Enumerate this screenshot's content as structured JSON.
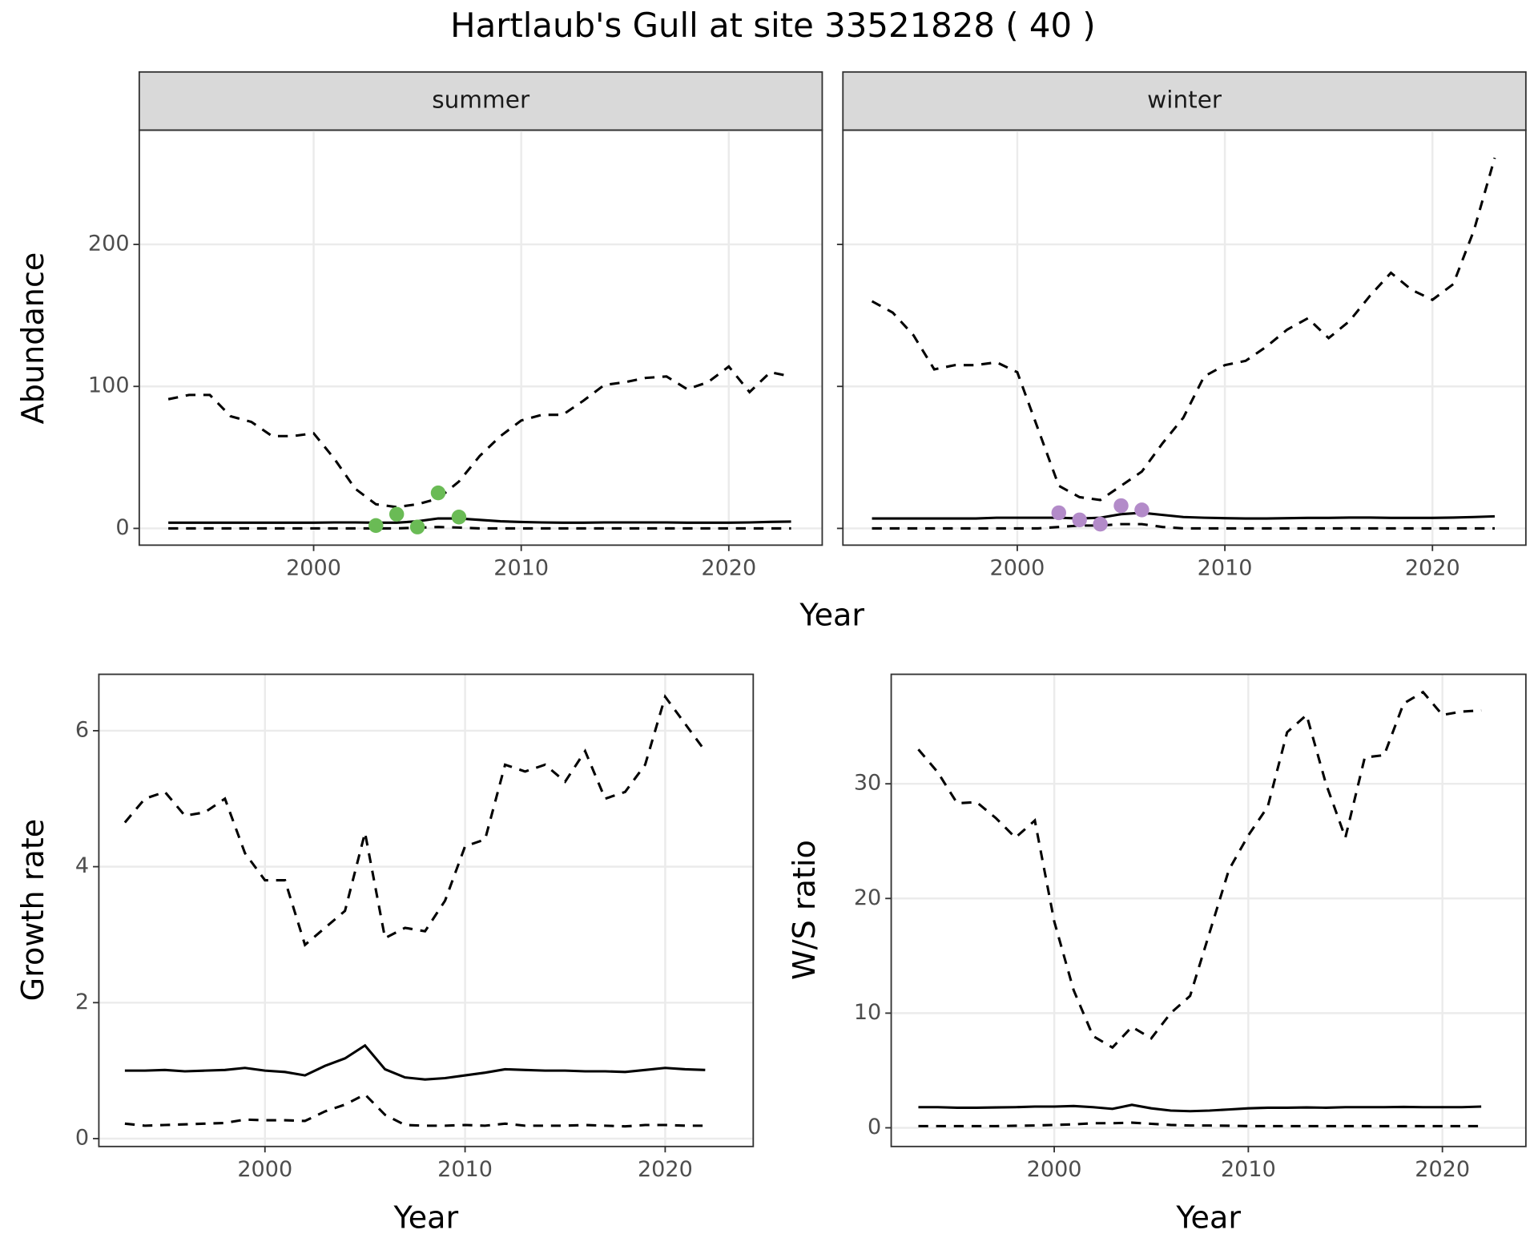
{
  "title": "Hartlaub's Gull at site 33521828 ( 40 )",
  "chart_data": [
    {
      "type": "line",
      "facet": "summer",
      "xlabel": "Year",
      "ylabel": "Abundance",
      "x": [
        1993,
        1994,
        1995,
        1996,
        1997,
        1998,
        1999,
        2000,
        2001,
        2002,
        2003,
        2004,
        2005,
        2006,
        2007,
        2008,
        2009,
        2010,
        2011,
        2012,
        2013,
        2014,
        2015,
        2016,
        2017,
        2018,
        2019,
        2020,
        2021,
        2022,
        2023
      ],
      "series": [
        {
          "color": "#000000",
          "dashed": true,
          "values": [
            91,
            94,
            94,
            79,
            75,
            65,
            65,
            67,
            49,
            28,
            17,
            15,
            17,
            21,
            33,
            51,
            65,
            76,
            80,
            80,
            90,
            101,
            103,
            106,
            107,
            98,
            103,
            114,
            96,
            110,
            107
          ]
        },
        {
          "color": "#000000",
          "dashed": false,
          "values": [
            4,
            4,
            4,
            4,
            4,
            4,
            4,
            4,
            4.2,
            4.2,
            4,
            4,
            5,
            7,
            7,
            6,
            5,
            4.5,
            4.2,
            4,
            4,
            4.2,
            4.2,
            4.2,
            4.2,
            4,
            4,
            4,
            4.2,
            4.6,
            4.8
          ]
        },
        {
          "color": "#000000",
          "dashed": true,
          "values": [
            0,
            0,
            0,
            0,
            0,
            0,
            0,
            0,
            0,
            0,
            0,
            0,
            0.5,
            1,
            0.6,
            0,
            0,
            0,
            0,
            0,
            0,
            0,
            0,
            0,
            0,
            0,
            0,
            0,
            0,
            0,
            0
          ]
        }
      ],
      "points": {
        "color": "#6abb55",
        "x": [
          2003,
          2004,
          2005,
          2006,
          2007
        ],
        "values": [
          2,
          10,
          1,
          25,
          8
        ]
      },
      "xlim": [
        1991.6,
        2024.5
      ],
      "xticks": [
        2000,
        2010,
        2020
      ],
      "ylim": [
        -11.8,
        280.5
      ],
      "yticks": [
        0,
        100,
        200
      ],
      "ytick_labels": true,
      "grid": true
    },
    {
      "type": "line",
      "facet": "winter",
      "x": [
        1993,
        1994,
        1995,
        1996,
        1997,
        1998,
        1999,
        2000,
        2001,
        2002,
        2003,
        2004,
        2005,
        2006,
        2007,
        2008,
        2009,
        2010,
        2011,
        2012,
        2013,
        2014,
        2015,
        2016,
        2017,
        2018,
        2019,
        2020,
        2021,
        2022,
        2023
      ],
      "series": [
        {
          "color": "#000000",
          "dashed": true,
          "values": [
            160,
            152,
            136,
            112,
            115,
            115,
            117,
            110,
            70,
            30,
            22,
            20,
            30,
            40,
            60,
            78,
            107,
            115,
            118,
            128,
            140,
            148,
            134,
            146,
            164,
            180,
            168,
            161,
            172,
            210,
            261
          ]
        },
        {
          "color": "#000000",
          "dashed": false,
          "values": [
            7,
            7,
            7,
            7,
            7,
            7,
            7.5,
            7.5,
            7.5,
            7.5,
            7,
            7.5,
            10,
            11,
            9.5,
            8,
            7.5,
            7.2,
            7,
            7,
            7.2,
            7.4,
            7.4,
            7.6,
            7.6,
            7.4,
            7.4,
            7.4,
            7.6,
            8,
            8.5
          ]
        },
        {
          "color": "#000000",
          "dashed": true,
          "values": [
            0,
            0,
            0,
            0,
            0,
            0,
            0,
            0,
            0,
            1,
            2,
            2,
            3,
            3,
            1,
            0,
            0,
            0,
            0,
            0,
            0,
            0,
            0,
            0,
            0,
            0,
            0,
            0,
            0,
            0,
            0
          ]
        }
      ],
      "points": {
        "color": "#b38bc9",
        "x": [
          2002,
          2003,
          2004,
          2005,
          2006
        ],
        "values": [
          11,
          6,
          3,
          16,
          13
        ]
      },
      "xlim": [
        1991.6,
        2024.5
      ],
      "xticks": [
        2000,
        2010,
        2020
      ],
      "ylim": [
        -11.8,
        280.5
      ],
      "yticks": [
        0,
        100,
        200
      ],
      "ytick_labels": false,
      "grid": true
    },
    {
      "type": "line",
      "xlabel": "Year",
      "ylabel": "Growth rate",
      "x": [
        1993,
        1994,
        1995,
        1996,
        1997,
        1998,
        1999,
        2000,
        2001,
        2002,
        2003,
        2004,
        2005,
        2006,
        2007,
        2008,
        2009,
        2010,
        2011,
        2012,
        2013,
        2014,
        2015,
        2016,
        2017,
        2018,
        2019,
        2020,
        2021,
        2022
      ],
      "series": [
        {
          "color": "#000000",
          "dashed": true,
          "values": [
            4.65,
            5.0,
            5.1,
            4.75,
            4.8,
            5.0,
            4.2,
            3.8,
            3.8,
            2.85,
            3.1,
            3.35,
            4.5,
            2.95,
            3.1,
            3.05,
            3.5,
            4.3,
            4.4,
            5.5,
            5.4,
            5.5,
            5.25,
            5.7,
            5.0,
            5.1,
            5.5,
            6.5,
            6.1,
            5.7
          ]
        },
        {
          "color": "#000000",
          "dashed": false,
          "values": [
            1.0,
            1.0,
            1.01,
            0.99,
            1.0,
            1.01,
            1.04,
            1.0,
            0.98,
            0.93,
            1.07,
            1.18,
            1.37,
            1.02,
            0.9,
            0.87,
            0.89,
            0.93,
            0.97,
            1.02,
            1.01,
            1.0,
            1.0,
            0.99,
            0.99,
            0.98,
            1.01,
            1.04,
            1.02,
            1.01
          ]
        },
        {
          "color": "#000000",
          "dashed": true,
          "values": [
            0.22,
            0.19,
            0.2,
            0.21,
            0.22,
            0.23,
            0.28,
            0.27,
            0.27,
            0.26,
            0.4,
            0.5,
            0.65,
            0.35,
            0.2,
            0.19,
            0.19,
            0.2,
            0.19,
            0.22,
            0.19,
            0.19,
            0.19,
            0.2,
            0.19,
            0.18,
            0.2,
            0.2,
            0.19,
            0.19
          ]
        }
      ],
      "xlim": [
        1991.7,
        2024.4
      ],
      "xticks": [
        2000,
        2010,
        2020
      ],
      "ylim": [
        -0.116,
        6.83
      ],
      "yticks": [
        0,
        2,
        4,
        6
      ],
      "ytick_labels": true,
      "grid": true
    },
    {
      "type": "line",
      "xlabel": "Year",
      "ylabel": "W/S ratio",
      "x": [
        1993,
        1994,
        1995,
        1996,
        1997,
        1998,
        1999,
        2000,
        2001,
        2002,
        2003,
        2004,
        2005,
        2006,
        2007,
        2008,
        2009,
        2010,
        2011,
        2012,
        2013,
        2014,
        2015,
        2016,
        2017,
        2018,
        2019,
        2020,
        2021,
        2022
      ],
      "series": [
        {
          "color": "#000000",
          "dashed": true,
          "values": [
            33,
            31,
            28.3,
            28.4,
            27,
            25.3,
            26.8,
            18,
            12,
            8,
            7,
            8.8,
            7.8,
            10,
            11.5,
            17,
            22.5,
            25.5,
            28,
            34.5,
            36,
            30,
            25.3,
            32.3,
            32.5,
            37,
            38,
            36,
            36.3,
            36.4
          ]
        },
        {
          "color": "#000000",
          "dashed": false,
          "values": [
            1.8,
            1.8,
            1.75,
            1.75,
            1.78,
            1.8,
            1.85,
            1.85,
            1.9,
            1.8,
            1.65,
            2.0,
            1.7,
            1.5,
            1.45,
            1.5,
            1.6,
            1.7,
            1.75,
            1.75,
            1.78,
            1.75,
            1.8,
            1.8,
            1.8,
            1.82,
            1.8,
            1.8,
            1.8,
            1.85
          ]
        },
        {
          "color": "#000000",
          "dashed": true,
          "values": [
            0.15,
            0.15,
            0.15,
            0.15,
            0.15,
            0.18,
            0.2,
            0.25,
            0.3,
            0.4,
            0.4,
            0.45,
            0.35,
            0.25,
            0.2,
            0.2,
            0.18,
            0.15,
            0.15,
            0.15,
            0.15,
            0.15,
            0.15,
            0.15,
            0.15,
            0.15,
            0.15,
            0.15,
            0.15,
            0.15
          ]
        }
      ],
      "xlim": [
        1991.6,
        2024.3
      ],
      "xticks": [
        2000,
        2010,
        2020
      ],
      "ylim": [
        -1.63,
        39.55
      ],
      "yticks": [
        0,
        10,
        20,
        30
      ],
      "ytick_labels": true,
      "grid": true
    }
  ]
}
